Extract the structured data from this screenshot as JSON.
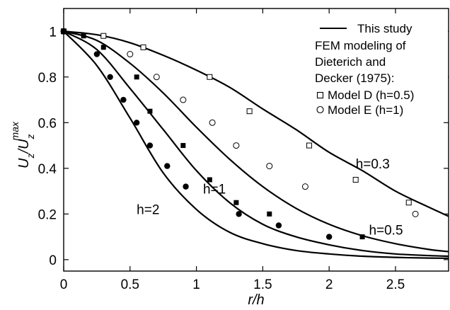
{
  "chart_data": {
    "type": "scatter",
    "xlabel": "r/h",
    "ylabel_main": "U",
    "ylabel_main_sub": "z",
    "ylabel_div": "/U",
    "ylabel_div_sub": "z",
    "ylabel_div_sup": "max",
    "xlim": [
      0,
      2.9
    ],
    "ylim": [
      -0.05,
      1.1
    ],
    "x_ticks": [
      0,
      0.5,
      1,
      1.5,
      2,
      2.5
    ],
    "x_tick_labels": [
      "0",
      "0.5",
      "1",
      "1.5",
      "2",
      "2.5"
    ],
    "y_ticks": [
      0,
      0.2,
      0.4,
      0.6,
      0.8,
      1
    ],
    "y_tick_labels": [
      "0",
      "0.2",
      "0.4",
      "0.6",
      "0.8",
      "1"
    ],
    "grid": false,
    "legend": {
      "placement": "top-right",
      "line_entry": "This study",
      "heading_lines": [
        "FEM modeling of",
        "Dieterich and",
        "Decker (1975):"
      ],
      "square_entry": "Model D (h=0.5)",
      "circle_entry": "Model E (h=1)"
    },
    "series": [
      {
        "kind": "curve",
        "label": "h=0.3",
        "x": [
          0,
          0.25,
          0.5,
          0.75,
          1.0,
          1.25,
          1.5,
          1.75,
          2.0,
          2.25,
          2.5,
          2.75,
          2.9
        ],
        "y": [
          1.0,
          0.985,
          0.95,
          0.895,
          0.83,
          0.755,
          0.66,
          0.57,
          0.47,
          0.39,
          0.3,
          0.23,
          0.19
        ]
      },
      {
        "kind": "curve",
        "label": "h=0.5",
        "x": [
          0,
          0.25,
          0.5,
          0.75,
          1.0,
          1.25,
          1.5,
          1.75,
          2.0,
          2.25,
          2.5,
          2.75,
          2.9
        ],
        "y": [
          1.0,
          0.96,
          0.86,
          0.73,
          0.58,
          0.44,
          0.32,
          0.225,
          0.155,
          0.105,
          0.07,
          0.045,
          0.035
        ]
      },
      {
        "kind": "curve",
        "label": "h=1",
        "x": [
          0,
          0.25,
          0.5,
          0.75,
          1.0,
          1.25,
          1.5,
          1.75,
          2.0,
          2.25,
          2.5,
          2.75,
          2.9
        ],
        "y": [
          1.0,
          0.92,
          0.75,
          0.57,
          0.39,
          0.25,
          0.155,
          0.1,
          0.065,
          0.04,
          0.025,
          0.018,
          0.015
        ]
      },
      {
        "kind": "curve",
        "label": "h=2",
        "x": [
          0,
          0.25,
          0.5,
          0.75,
          1.0,
          1.25,
          1.5,
          1.75,
          2.0,
          2.25,
          2.5,
          2.75,
          2.9
        ],
        "y": [
          1.0,
          0.85,
          0.62,
          0.38,
          0.22,
          0.12,
          0.07,
          0.04,
          0.025,
          0.015,
          0.01,
          0.007,
          0.006
        ]
      },
      {
        "kind": "markers",
        "marker": "open-square",
        "name": "Model D (h=0.5)",
        "x": [
          0,
          0.3,
          0.6,
          1.1,
          1.4,
          1.85,
          2.2,
          2.6
        ],
        "y": [
          1.0,
          0.98,
          0.93,
          0.8,
          0.65,
          0.5,
          0.35,
          0.25
        ]
      },
      {
        "kind": "markers",
        "marker": "open-circle",
        "name": "Model E (h=1)",
        "x": [
          0,
          0.5,
          0.7,
          0.9,
          1.12,
          1.3,
          1.55,
          1.82,
          2.65
        ],
        "y": [
          1.0,
          0.9,
          0.8,
          0.7,
          0.6,
          0.5,
          0.41,
          0.32,
          0.2
        ]
      },
      {
        "kind": "markers",
        "marker": "filled-square",
        "x": [
          0,
          0.15,
          0.3,
          0.55,
          0.65,
          0.9,
          1.1,
          1.3,
          1.55,
          2.25
        ],
        "y": [
          1.0,
          0.98,
          0.93,
          0.8,
          0.65,
          0.5,
          0.35,
          0.25,
          0.2,
          0.1
        ]
      },
      {
        "kind": "markers",
        "marker": "filled-circle",
        "x": [
          0,
          0.25,
          0.35,
          0.45,
          0.55,
          0.65,
          0.78,
          0.92,
          1.32,
          1.62,
          2.0
        ],
        "y": [
          1.0,
          0.9,
          0.8,
          0.7,
          0.6,
          0.5,
          0.41,
          0.32,
          0.2,
          0.15,
          0.1
        ]
      }
    ],
    "curve_labels": [
      {
        "text": "h=0.3",
        "x": 2.2,
        "y": 0.4
      },
      {
        "text": "h=0.5",
        "x": 2.3,
        "y": 0.11
      },
      {
        "text": "h=1",
        "x": 1.05,
        "y": 0.29
      },
      {
        "text": "h=2",
        "x": 0.55,
        "y": 0.2
      }
    ]
  }
}
